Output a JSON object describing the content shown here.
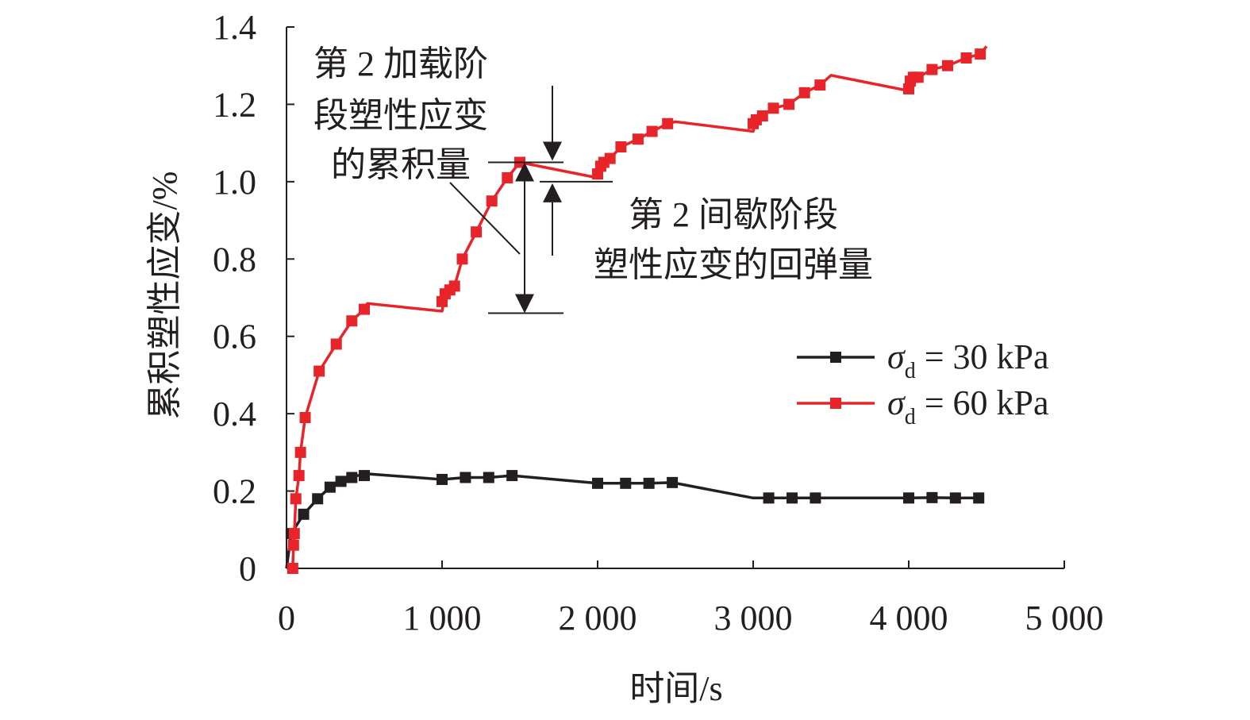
{
  "chart_data": {
    "type": "line",
    "title": "",
    "xlabel": "时间/s",
    "ylabel": "累积塑性应变/%",
    "xlim": [
      0,
      5000
    ],
    "ylim": [
      0,
      1.4
    ],
    "x_ticks": [
      0,
      1000,
      2000,
      3000,
      4000,
      5000
    ],
    "x_tick_labels": [
      "0",
      "1 000",
      "2 000",
      "3 000",
      "4 000",
      "5 000"
    ],
    "y_ticks": [
      0,
      0.2,
      0.4,
      0.6,
      0.8,
      1.0,
      1.2,
      1.4
    ],
    "y_tick_labels": [
      "0",
      "0.2",
      "0.4",
      "0.6",
      "0.8",
      "1.0",
      "1.2",
      "1.4"
    ],
    "grid": false,
    "legend_position": "right",
    "series": [
      {
        "name": "σd = 30 kPa",
        "legend_symbol": "σ",
        "legend_subscript": "d",
        "legend_suffix": " = 30 kPa",
        "color": "#231f20",
        "marker": "square",
        "x": [
          30,
          110,
          200,
          280,
          350,
          420,
          500,
          1000,
          1150,
          1300,
          1450,
          2000,
          2180,
          2330,
          2480,
          3100,
          3250,
          3400,
          4000,
          4150,
          4300,
          4450
        ],
        "y": [
          0.09,
          0.14,
          0.18,
          0.21,
          0.225,
          0.235,
          0.24,
          0.23,
          0.235,
          0.235,
          0.24,
          0.22,
          0.22,
          0.22,
          0.222,
          0.182,
          0.182,
          0.182,
          0.182,
          0.183,
          0.182,
          0.182
        ]
      },
      {
        "name": "σd = 60 kPa",
        "legend_symbol": "σ",
        "legend_subscript": "d",
        "legend_suffix": " = 60 kPa",
        "color": "#e8242b",
        "marker": "square",
        "x": [
          40,
          45,
          50,
          60,
          80,
          90,
          120,
          210,
          320,
          420,
          500,
          1000,
          1020,
          1050,
          1080,
          1130,
          1220,
          1320,
          1420,
          1500,
          2000,
          2020,
          2040,
          2080,
          2150,
          2260,
          2350,
          2450,
          3000,
          3020,
          3060,
          3130,
          3230,
          3330,
          3430,
          4000,
          4010,
          4030,
          4060,
          4150,
          4250,
          4370,
          4460
        ],
        "y": [
          0.0,
          0.06,
          0.09,
          0.18,
          0.24,
          0.3,
          0.39,
          0.51,
          0.58,
          0.64,
          0.67,
          0.69,
          0.71,
          0.72,
          0.73,
          0.8,
          0.87,
          0.95,
          1.01,
          1.05,
          1.02,
          1.04,
          1.05,
          1.06,
          1.09,
          1.11,
          1.13,
          1.15,
          1.15,
          1.16,
          1.17,
          1.19,
          1.2,
          1.23,
          1.25,
          1.24,
          1.26,
          1.27,
          1.27,
          1.29,
          1.3,
          1.32,
          1.33
        ]
      }
    ],
    "line_paths": {
      "σd = 30 kPa": {
        "x": [
          0,
          30,
          110,
          200,
          280,
          350,
          420,
          500,
          1000,
          1150,
          1300,
          1450,
          2000,
          2180,
          2330,
          2480,
          3000,
          3100,
          3250,
          3400,
          4000,
          4150,
          4300,
          4450
        ],
        "y": [
          0.0,
          0.09,
          0.14,
          0.18,
          0.21,
          0.225,
          0.235,
          0.245,
          0.23,
          0.235,
          0.235,
          0.24,
          0.22,
          0.22,
          0.22,
          0.222,
          0.182,
          0.182,
          0.182,
          0.182,
          0.182,
          0.183,
          0.182,
          0.182
        ]
      },
      "σd = 60 kPa": {
        "x": [
          40,
          45,
          50,
          60,
          80,
          90,
          120,
          210,
          320,
          420,
          500,
          520,
          1000,
          1020,
          1050,
          1080,
          1130,
          1220,
          1320,
          1420,
          1500,
          2000,
          2020,
          2040,
          2080,
          2150,
          2260,
          2350,
          2450,
          2500,
          3000,
          3020,
          3060,
          3130,
          3230,
          3330,
          3430,
          3500,
          4000,
          4010,
          4030,
          4060,
          4150,
          4250,
          4370,
          4460,
          4500
        ],
        "y": [
          0.0,
          0.06,
          0.09,
          0.18,
          0.24,
          0.3,
          0.39,
          0.51,
          0.58,
          0.64,
          0.67,
          0.685,
          0.665,
          0.71,
          0.72,
          0.73,
          0.8,
          0.87,
          0.95,
          1.01,
          1.05,
          1.01,
          1.04,
          1.05,
          1.06,
          1.09,
          1.11,
          1.13,
          1.15,
          1.155,
          1.13,
          1.16,
          1.17,
          1.19,
          1.2,
          1.23,
          1.25,
          1.275,
          1.235,
          1.26,
          1.27,
          1.27,
          1.29,
          1.3,
          1.32,
          1.33,
          1.35
        ]
      }
    },
    "annotations": [
      {
        "lines": [
          "第 2 加载阶",
          "段塑性应变",
          "的累积量"
        ]
      },
      {
        "lines": [
          "第 2 间歇阶段",
          "塑性应变的回弹量"
        ]
      }
    ],
    "annotation_refs": {
      "loading_top_y": 1.05,
      "loading_bottom_y": 0.66,
      "rebound_top_y": 1.05,
      "rebound_bottom_y": 1.0
    }
  }
}
